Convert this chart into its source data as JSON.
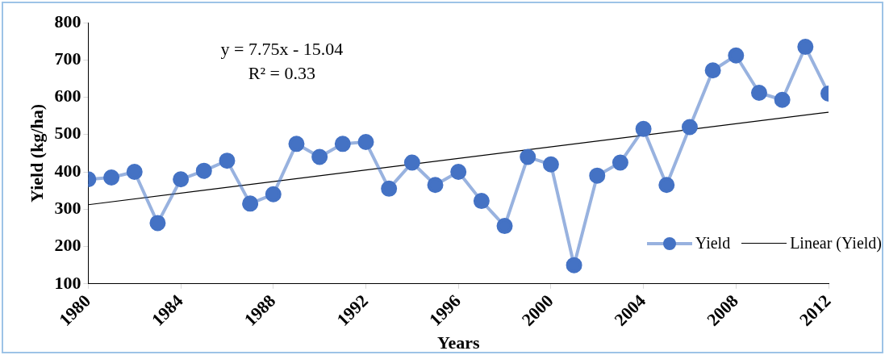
{
  "chart_data": {
    "type": "line",
    "xlabel": "Years",
    "ylabel": "Yield (kg/ha)",
    "x": [
      1980,
      1981,
      1982,
      1983,
      1984,
      1985,
      1986,
      1987,
      1988,
      1989,
      1990,
      1991,
      1992,
      1993,
      1994,
      1995,
      1996,
      1997,
      1998,
      1999,
      2000,
      2001,
      2002,
      2003,
      2004,
      2005,
      2006,
      2007,
      2008,
      2009,
      2010,
      2011,
      2012
    ],
    "series": [
      {
        "name": "Yield",
        "color": "#4472c4",
        "marker": "circle",
        "values": [
          380,
          385,
          400,
          263,
          380,
          403,
          430,
          315,
          340,
          475,
          440,
          475,
          480,
          355,
          425,
          365,
          400,
          322,
          255,
          440,
          420,
          150,
          390,
          425,
          515,
          365,
          520,
          672,
          712,
          612,
          593,
          735,
          610
        ]
      },
      {
        "name": "Linear (Yield)",
        "type": "line",
        "color": "#000000",
        "marker": "none",
        "x": [
          1980,
          2012
        ],
        "values": [
          312,
          560
        ]
      }
    ],
    "xlim": [
      1980,
      2012
    ],
    "xticks": [
      1980,
      1984,
      1988,
      1992,
      1996,
      2000,
      2004,
      2008,
      2012
    ],
    "ylim": [
      100,
      800
    ],
    "yticks": [
      100,
      200,
      300,
      400,
      500,
      600,
      700,
      800
    ],
    "grid": false,
    "legend": "bottom right",
    "annotations": [
      "y = 7.75x - 15.04",
      "R² = 0.33"
    ]
  }
}
